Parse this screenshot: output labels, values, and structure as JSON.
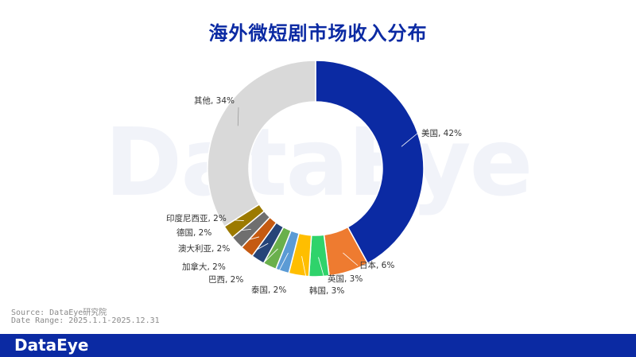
{
  "title": "海外微短剧市场收入分布",
  "watermark": "DataEye",
  "source": {
    "line1": "Source: DataEye研究院",
    "line2": "Date Range: 2025.1.1-2025.12.31"
  },
  "footer": {
    "logo": "DataEye"
  },
  "chart_data": {
    "type": "pie",
    "donut": true,
    "categories": [
      "美国",
      "日本",
      "英国",
      "韩国",
      "泰国",
      "巴西",
      "加拿大",
      "澳大利亚",
      "德国",
      "印度尼西亚",
      "其他"
    ],
    "values": [
      42,
      6,
      3,
      3,
      2,
      2,
      2,
      2,
      2,
      2,
      34
    ],
    "labels": [
      "美国, 42%",
      "日本, 6%",
      "英国, 3%",
      "韩国, 3%",
      "泰国, 2%",
      "巴西, 2%",
      "加拿大, 2%",
      "澳大利亚, 2%",
      "德国, 2%",
      "印度尼西亚, 2%",
      "其他, 34%"
    ],
    "colors": [
      "#0b2aa3",
      "#ee7b30",
      "#2fd36b",
      "#ffbe00",
      "#5b9bd5",
      "#6ab04c",
      "#264478",
      "#c55a11",
      "#6f6f6f",
      "#9c7a00",
      "#d9d9d9"
    ],
    "legend": "none"
  }
}
